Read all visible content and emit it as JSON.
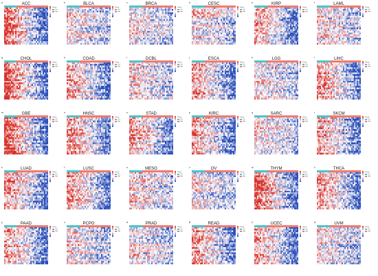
{
  "figure": {
    "panels": [
      {
        "letter": "a",
        "title": "ACC",
        "pattern": "leftred"
      },
      {
        "letter": "b",
        "title": "BLCA",
        "pattern": "mixed"
      },
      {
        "letter": "c",
        "title": "BRCA",
        "pattern": "mixed"
      },
      {
        "letter": "d",
        "title": "CESC",
        "pattern": "mixed"
      },
      {
        "letter": "e",
        "title": "KIRP",
        "pattern": "rightblue"
      },
      {
        "letter": "f",
        "title": "LAML",
        "pattern": "mixed"
      },
      {
        "letter": "g",
        "title": "CHOL",
        "pattern": "leftred"
      },
      {
        "letter": "h",
        "title": "COAD",
        "pattern": "rightblue"
      },
      {
        "letter": "i",
        "title": "DCBL",
        "pattern": "mixed"
      },
      {
        "letter": "j",
        "title": "ESCA",
        "pattern": "rightblue"
      },
      {
        "letter": "k",
        "title": "LGG",
        "pattern": "mixed"
      },
      {
        "letter": "l",
        "title": "LIHC",
        "pattern": "rightblue"
      },
      {
        "letter": "m",
        "title": "GBE",
        "pattern": "leftred"
      },
      {
        "letter": "n",
        "title": "HNSC",
        "pattern": "rightblue"
      },
      {
        "letter": "o",
        "title": "STAD",
        "pattern": "rightblue"
      },
      {
        "letter": "p",
        "title": "KIRC",
        "pattern": "rightblue"
      },
      {
        "letter": "q",
        "title": "SARC",
        "pattern": "mixed"
      },
      {
        "letter": "r",
        "title": "SKCM",
        "pattern": "rightblue"
      },
      {
        "letter": "s",
        "title": "LUAD",
        "pattern": "rightblue"
      },
      {
        "letter": "t",
        "title": "LUSC",
        "pattern": "rightblue"
      },
      {
        "letter": "u",
        "title": "MESO",
        "pattern": "mixed"
      },
      {
        "letter": "v",
        "title": "OV",
        "pattern": "mixed"
      },
      {
        "letter": "w",
        "title": "THYM",
        "pattern": "leftred"
      },
      {
        "letter": "x",
        "title": "THCA",
        "pattern": "rightblue"
      },
      {
        "letter": "y",
        "title": "PAAD",
        "pattern": "rightblue"
      },
      {
        "letter": "z",
        "title": "PCPG",
        "pattern": "mixed"
      },
      {
        "letter": "A",
        "title": "PRAD",
        "pattern": "mixed"
      },
      {
        "letter": "B",
        "title": "READ",
        "pattern": "rightblue"
      },
      {
        "letter": "C",
        "title": "UCEC",
        "pattern": "rightblue"
      },
      {
        "letter": "D",
        "title": "UVM",
        "pattern": "mixed"
      }
    ],
    "legend": {
      "group_title": "Group",
      "groups": [
        "Low",
        "High"
      ],
      "group_colors": [
        "#4ec3c8",
        "#ef7b6f"
      ],
      "scale_ticks": [
        "4",
        "2",
        "0",
        "-2",
        "-4"
      ]
    },
    "colors": {
      "high": "#d7302a",
      "mid": "#ffffff",
      "low": "#2c4fb8"
    }
  }
}
